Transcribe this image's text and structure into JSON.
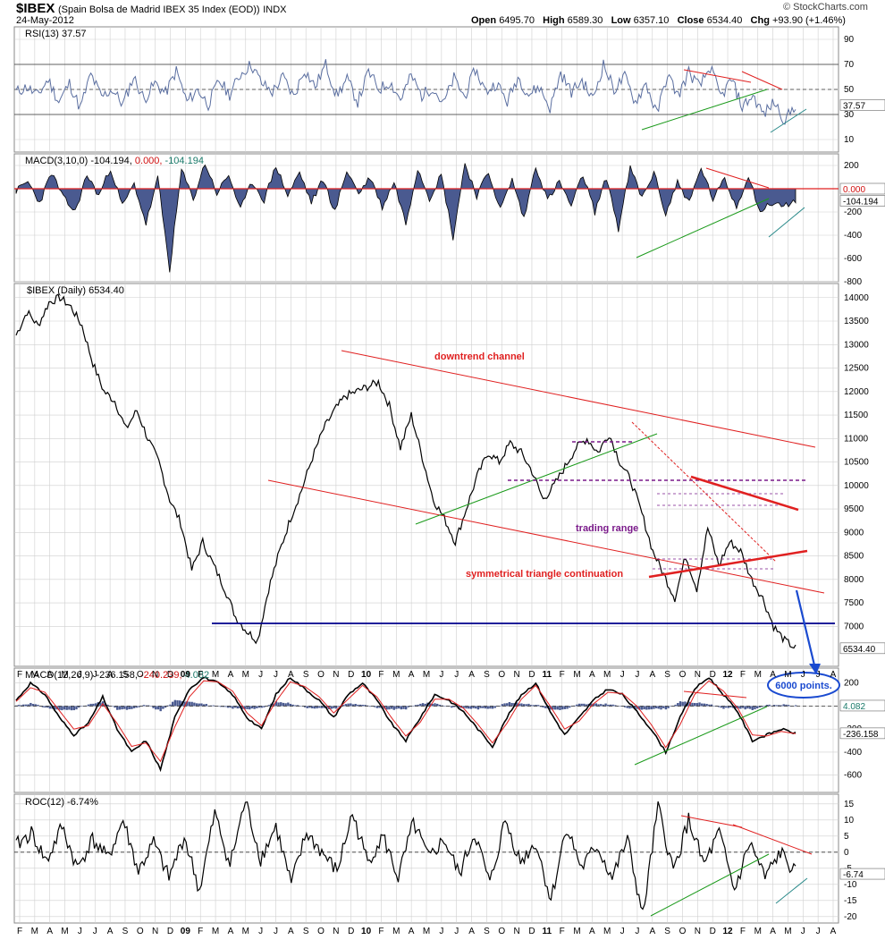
{
  "header": {
    "symbol": "$IBEX",
    "name": "(Spain Bolsa de Madrid IBEX 35 Index (EOD))",
    "exchange": "INDX",
    "date": "24-May-2012",
    "watermark": "© StockCharts.com",
    "open_label": "Open",
    "open": "6495.70",
    "high_label": "High",
    "high": "6589.30",
    "low_label": "Low",
    "low": "6357.10",
    "close_label": "Close",
    "close": "6534.40",
    "chg_label": "Chg",
    "chg": "+93.90 (+1.46%)"
  },
  "colors": {
    "grid": "#cfcfcf",
    "price": "#000000",
    "hist": "#4a5a90",
    "rsi": "#5a6ea0",
    "trend_red": "#e02020",
    "trend_green": "#1a9a1a",
    "support_blue": "#00008b",
    "annot_purple": "#7a1a8a",
    "signal_red": "#e02020"
  },
  "x_axis": {
    "labels": [
      "F",
      "M",
      "A",
      "M",
      "J",
      "J",
      "A",
      "S",
      "O",
      "N",
      "D",
      "09",
      "F",
      "M",
      "A",
      "M",
      "J",
      "J",
      "A",
      "S",
      "O",
      "N",
      "D",
      "10",
      "F",
      "M",
      "A",
      "M",
      "J",
      "J",
      "A",
      "S",
      "O",
      "N",
      "D",
      "11",
      "F",
      "M",
      "A",
      "M",
      "J",
      "J",
      "A",
      "S",
      "O",
      "N",
      "D",
      "12",
      "F",
      "M",
      "A",
      "M",
      "J",
      "J",
      "A"
    ]
  },
  "chart_data": [
    {
      "type": "line",
      "panel": "rsi",
      "title": "RSI(13) 37.57",
      "last_value_label": "37.57",
      "ylim": [
        0,
        100
      ],
      "yticks": [
        10,
        30,
        50,
        70,
        90
      ],
      "reference_lines": [
        30,
        50,
        70
      ],
      "series": [
        {
          "name": "RSI(13)",
          "values": [
            48,
            52,
            45,
            58,
            40,
            55,
            35,
            62,
            44,
            50,
            38,
            60,
            42,
            55,
            47,
            65,
            40,
            50,
            38,
            57,
            46,
            62,
            70,
            55,
            48,
            60,
            44,
            66,
            52,
            70,
            45,
            58,
            40,
            64,
            50,
            56,
            42,
            61,
            45,
            52,
            38,
            59,
            44,
            66,
            48,
            55,
            40,
            60,
            46,
            52,
            35,
            63,
            48,
            57,
            42,
            70,
            50,
            60,
            40,
            55,
            30,
            62,
            45,
            64,
            52,
            68,
            44,
            58,
            36,
            45,
            30,
            40,
            25,
            38
          ]
        }
      ]
    },
    {
      "type": "area",
      "panel": "macd_short",
      "title": "MACD(3,10,0) -104.194, 0.000, -104.194",
      "title_parts": {
        "label": "MACD(3,10,0) -104.194,",
        "sig": "0.000,",
        "hist": "-104.194"
      },
      "last_value_label": "-104.194",
      "zero_label": "0.000",
      "ylim": [
        -800,
        300
      ],
      "yticks": [
        200,
        0,
        -200,
        -400,
        -600,
        -800
      ],
      "series": [
        {
          "name": "MACD(3,10,0)",
          "values": [
            -20,
            60,
            -120,
            140,
            -80,
            -200,
            120,
            -60,
            180,
            -150,
            40,
            -300,
            90,
            -700,
            160,
            -90,
            220,
            -40,
            120,
            -180,
            60,
            -100,
            200,
            -60,
            140,
            -120,
            80,
            -200,
            160,
            -40,
            100,
            -160,
            60,
            -300,
            180,
            -80,
            120,
            -420,
            220,
            -60,
            140,
            -180,
            80,
            -260,
            200,
            -100,
            60,
            -150,
            120,
            -200,
            100,
            -350,
            180,
            -80,
            140,
            -220,
            60,
            -120,
            180,
            -90,
            80,
            -160,
            120,
            -200,
            -120,
            -150,
            -104
          ]
        }
      ]
    },
    {
      "type": "line",
      "panel": "price",
      "title": "$IBEX (Daily) 6534.40",
      "last_value_label": "6534.40",
      "ylim": [
        6150,
        14300
      ],
      "yticks": [
        7000,
        7500,
        8000,
        8500,
        9000,
        9500,
        10000,
        10500,
        11000,
        11500,
        12000,
        12500,
        13000,
        13500,
        14000
      ],
      "series": [
        {
          "name": "$IBEX (Daily)",
          "values": [
            13200,
            13700,
            13400,
            13900,
            14000,
            13800,
            13400,
            12600,
            12000,
            11800,
            11200,
            11600,
            11000,
            10500,
            9700,
            9200,
            8200,
            8800,
            8300,
            7800,
            7200,
            6900,
            6700,
            7800,
            8600,
            9300,
            9900,
            10600,
            11200,
            11600,
            11900,
            12000,
            12100,
            12200,
            11700,
            10800,
            11500,
            10600,
            9700,
            9300,
            8800,
            9500,
            10200,
            10700,
            10500,
            10900,
            10700,
            10300,
            9700,
            10000,
            10400,
            10800,
            11000,
            10700,
            11100,
            10500,
            10100,
            9400,
            8600,
            8100,
            7600,
            8500,
            7800,
            9100,
            8300,
            8800,
            8600,
            8000,
            7600,
            7000,
            6700,
            6534
          ]
        }
      ]
    },
    {
      "type": "line",
      "panel": "macd_long",
      "title": "MACD(12,26,9) -236.158, -240.239, 4.082",
      "title_parts": {
        "label": "MACD(12,26,9) -236.158,",
        "sig": "-240.239,",
        "hist": "4.082"
      },
      "last_value_label": "-236.158",
      "hist_label": "4.082",
      "ylim": [
        -750,
        330
      ],
      "yticks": [
        200,
        0,
        -200,
        -400,
        -600
      ],
      "series": [
        {
          "name": "MACD",
          "values": [
            50,
            200,
            100,
            -100,
            -250,
            -150,
            80,
            -200,
            -400,
            -300,
            -550,
            -100,
            150,
            250,
            200,
            100,
            -100,
            -200,
            100,
            250,
            150,
            50,
            -100,
            100,
            200,
            50,
            -150,
            -300,
            -100,
            100,
            50,
            -50,
            -200,
            -350,
            -100,
            100,
            200,
            -50,
            -250,
            -100,
            50,
            150,
            100,
            -50,
            -200,
            -400,
            -100,
            150,
            250,
            100,
            -50,
            -300,
            -250,
            -200,
            -236
          ]
        },
        {
          "name": "Signal",
          "values": [
            40,
            160,
            120,
            -40,
            -200,
            -170,
            20,
            -150,
            -350,
            -320,
            -480,
            -180,
            80,
            220,
            210,
            130,
            -60,
            -170,
            40,
            210,
            170,
            80,
            -60,
            60,
            180,
            80,
            -100,
            -260,
            -140,
            60,
            60,
            -20,
            -160,
            -320,
            -150,
            60,
            180,
            0,
            -200,
            -130,
            20,
            120,
            110,
            0,
            -160,
            -360,
            -160,
            100,
            220,
            130,
            -20,
            -250,
            -260,
            -220,
            -240
          ]
        }
      ]
    },
    {
      "type": "line",
      "panel": "roc",
      "title": "ROC(12) -6.74%",
      "last_value_label": "-6.74",
      "ylim": [
        -22,
        18
      ],
      "yticks": [
        15,
        10,
        5,
        0,
        -5,
        -10,
        -15,
        -20
      ],
      "series": [
        {
          "name": "ROC(12)",
          "values": [
            2,
            6,
            -3,
            8,
            -5,
            4,
            -2,
            10,
            -6,
            3,
            -8,
            5,
            -12,
            12,
            -4,
            16,
            -2,
            8,
            -10,
            6,
            0,
            -6,
            12,
            -3,
            5,
            -8,
            9,
            -2,
            4,
            -7,
            6,
            -10,
            10,
            -3,
            3,
            -15,
            8,
            -5,
            2,
            -8,
            4,
            -20,
            14,
            -6,
            10,
            -4,
            6,
            -12,
            3,
            -8,
            0,
            -6.74
          ]
        }
      ]
    }
  ],
  "annotations": {
    "downtrend_channel": "downtrend channel",
    "trading_range": "trading range",
    "triangle": "symmetrical triangle continuation",
    "target": "6000 points."
  }
}
